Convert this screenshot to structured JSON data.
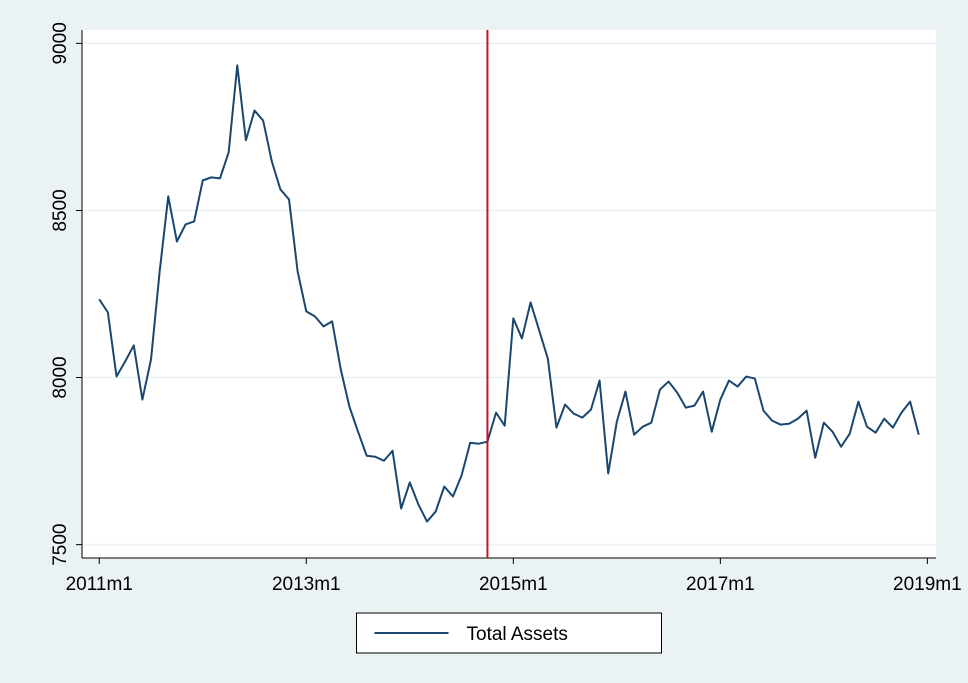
{
  "chart_data": {
    "type": "line",
    "x": [
      "2011m1",
      "2011m2",
      "2011m3",
      "2011m4",
      "2011m5",
      "2011m6",
      "2011m7",
      "2011m8",
      "2011m9",
      "2011m10",
      "2011m11",
      "2011m12",
      "2012m1",
      "2012m2",
      "2012m3",
      "2012m4",
      "2012m5",
      "2012m6",
      "2012m7",
      "2012m8",
      "2012m9",
      "2012m10",
      "2012m11",
      "2012m12",
      "2013m1",
      "2013m2",
      "2013m3",
      "2013m4",
      "2013m5",
      "2013m6",
      "2013m7",
      "2013m8",
      "2013m9",
      "2013m10",
      "2013m11",
      "2013m12",
      "2014m1",
      "2014m2",
      "2014m3",
      "2014m4",
      "2014m5",
      "2014m6",
      "2014m7",
      "2014m8",
      "2014m9",
      "2014m10",
      "2014m11",
      "2014m12",
      "2015m1",
      "2015m2",
      "2015m3",
      "2015m4",
      "2015m5",
      "2015m6",
      "2015m7",
      "2015m8",
      "2015m9",
      "2015m10",
      "2015m11",
      "2015m12",
      "2016m1",
      "2016m2",
      "2016m3",
      "2016m4",
      "2016m5",
      "2016m6",
      "2016m7",
      "2016m8",
      "2016m9",
      "2016m10",
      "2016m11",
      "2016m12",
      "2017m1",
      "2017m2",
      "2017m3",
      "2017m4",
      "2017m5",
      "2017m6",
      "2017m7",
      "2017m8",
      "2017m9",
      "2017m10",
      "2017m11",
      "2017m12",
      "2018m1",
      "2018m2",
      "2018m3",
      "2018m4",
      "2018m5",
      "2018m6",
      "2018m7",
      "2018m8",
      "2018m9",
      "2018m10",
      "2018m11",
      "2018m12"
    ],
    "series": [
      {
        "name": "Total Assets",
        "color": "#1a476f",
        "values": [
          8234,
          8195,
          8003,
          8048,
          8096,
          7934,
          8054,
          8317,
          8542,
          8407,
          8458,
          8467,
          8590,
          8599,
          8596,
          8674,
          8934,
          8710,
          8799,
          8769,
          8647,
          8563,
          8533,
          8317,
          8198,
          8183,
          8153,
          8168,
          8024,
          7913,
          7838,
          7766,
          7763,
          7751,
          7781,
          7608,
          7686,
          7620,
          7569,
          7599,
          7674,
          7644,
          7707,
          7805,
          7802,
          7808,
          7895,
          7856,
          8177,
          8117,
          8225,
          8141,
          8057,
          7850,
          7919,
          7892,
          7880,
          7904,
          7991,
          7713,
          7868,
          7958,
          7829,
          7853,
          7865,
          7964,
          7988,
          7955,
          7910,
          7916,
          7958,
          7838,
          7934,
          7991,
          7973,
          8003,
          7997,
          7901,
          7871,
          7859,
          7862,
          7877,
          7901,
          7760,
          7865,
          7838,
          7793,
          7832,
          7928,
          7853,
          7835,
          7877,
          7850,
          7895,
          7928,
          7829
        ]
      }
    ],
    "xlim": [
      "2010m11",
      "2019m2"
    ],
    "xticks": [
      "2011m1",
      "2013m1",
      "2015m1",
      "2017m1",
      "2019m1"
    ],
    "ylim": [
      7460,
      9040
    ],
    "yticks": [
      7500,
      8000,
      8500,
      9000
    ],
    "grid": true,
    "vline": {
      "x": "2014m10",
      "color": "#c8102e"
    },
    "legend": "bottom"
  }
}
